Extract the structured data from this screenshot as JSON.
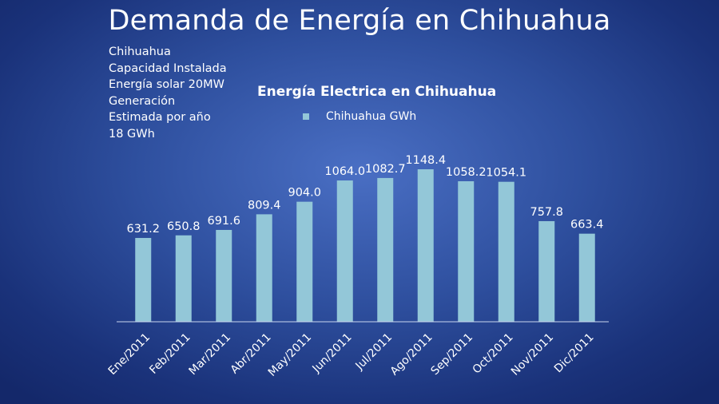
{
  "slide": {
    "title": "Demanda de Energía en Chihuahua",
    "info_lines": [
      "Chihuahua",
      "Capacidad Instalada",
      "Energía solar 20MW",
      "Generación",
      "Estimada por año",
      "18 GWh"
    ]
  },
  "chart_data": {
    "type": "bar",
    "title": "Energía Electrica en  Chihuahua",
    "categories": [
      "Ene/2011",
      "Feb/2011",
      "Mar/2011",
      "Abr/2011",
      "May/2011",
      "Jun/2011",
      "Jul/2011",
      "Ago/2011",
      "Sep/2011",
      "Oct/2011",
      "Nov/2011",
      "Dic/2011"
    ],
    "series": [
      {
        "name": "Chihuahua GWh",
        "values": [
          631.2,
          650.8,
          691.6,
          809.4,
          904.0,
          1064.0,
          1082.7,
          1148.4,
          1058.2,
          1054.1,
          757.8,
          663.4
        ]
      }
    ],
    "data_labels": [
      "631.2",
      "650.8",
      "691.6",
      "809.4",
      "904.0",
      "1064.0",
      "1082.7",
      "1148.4",
      "1058.2",
      "1054.1",
      "757.8",
      "663.4"
    ],
    "xlabel": "",
    "ylabel": "",
    "ylim": [
      0,
      1200
    ],
    "grid": false,
    "legend_position": "top",
    "bar_color": "#93c7d8"
  }
}
